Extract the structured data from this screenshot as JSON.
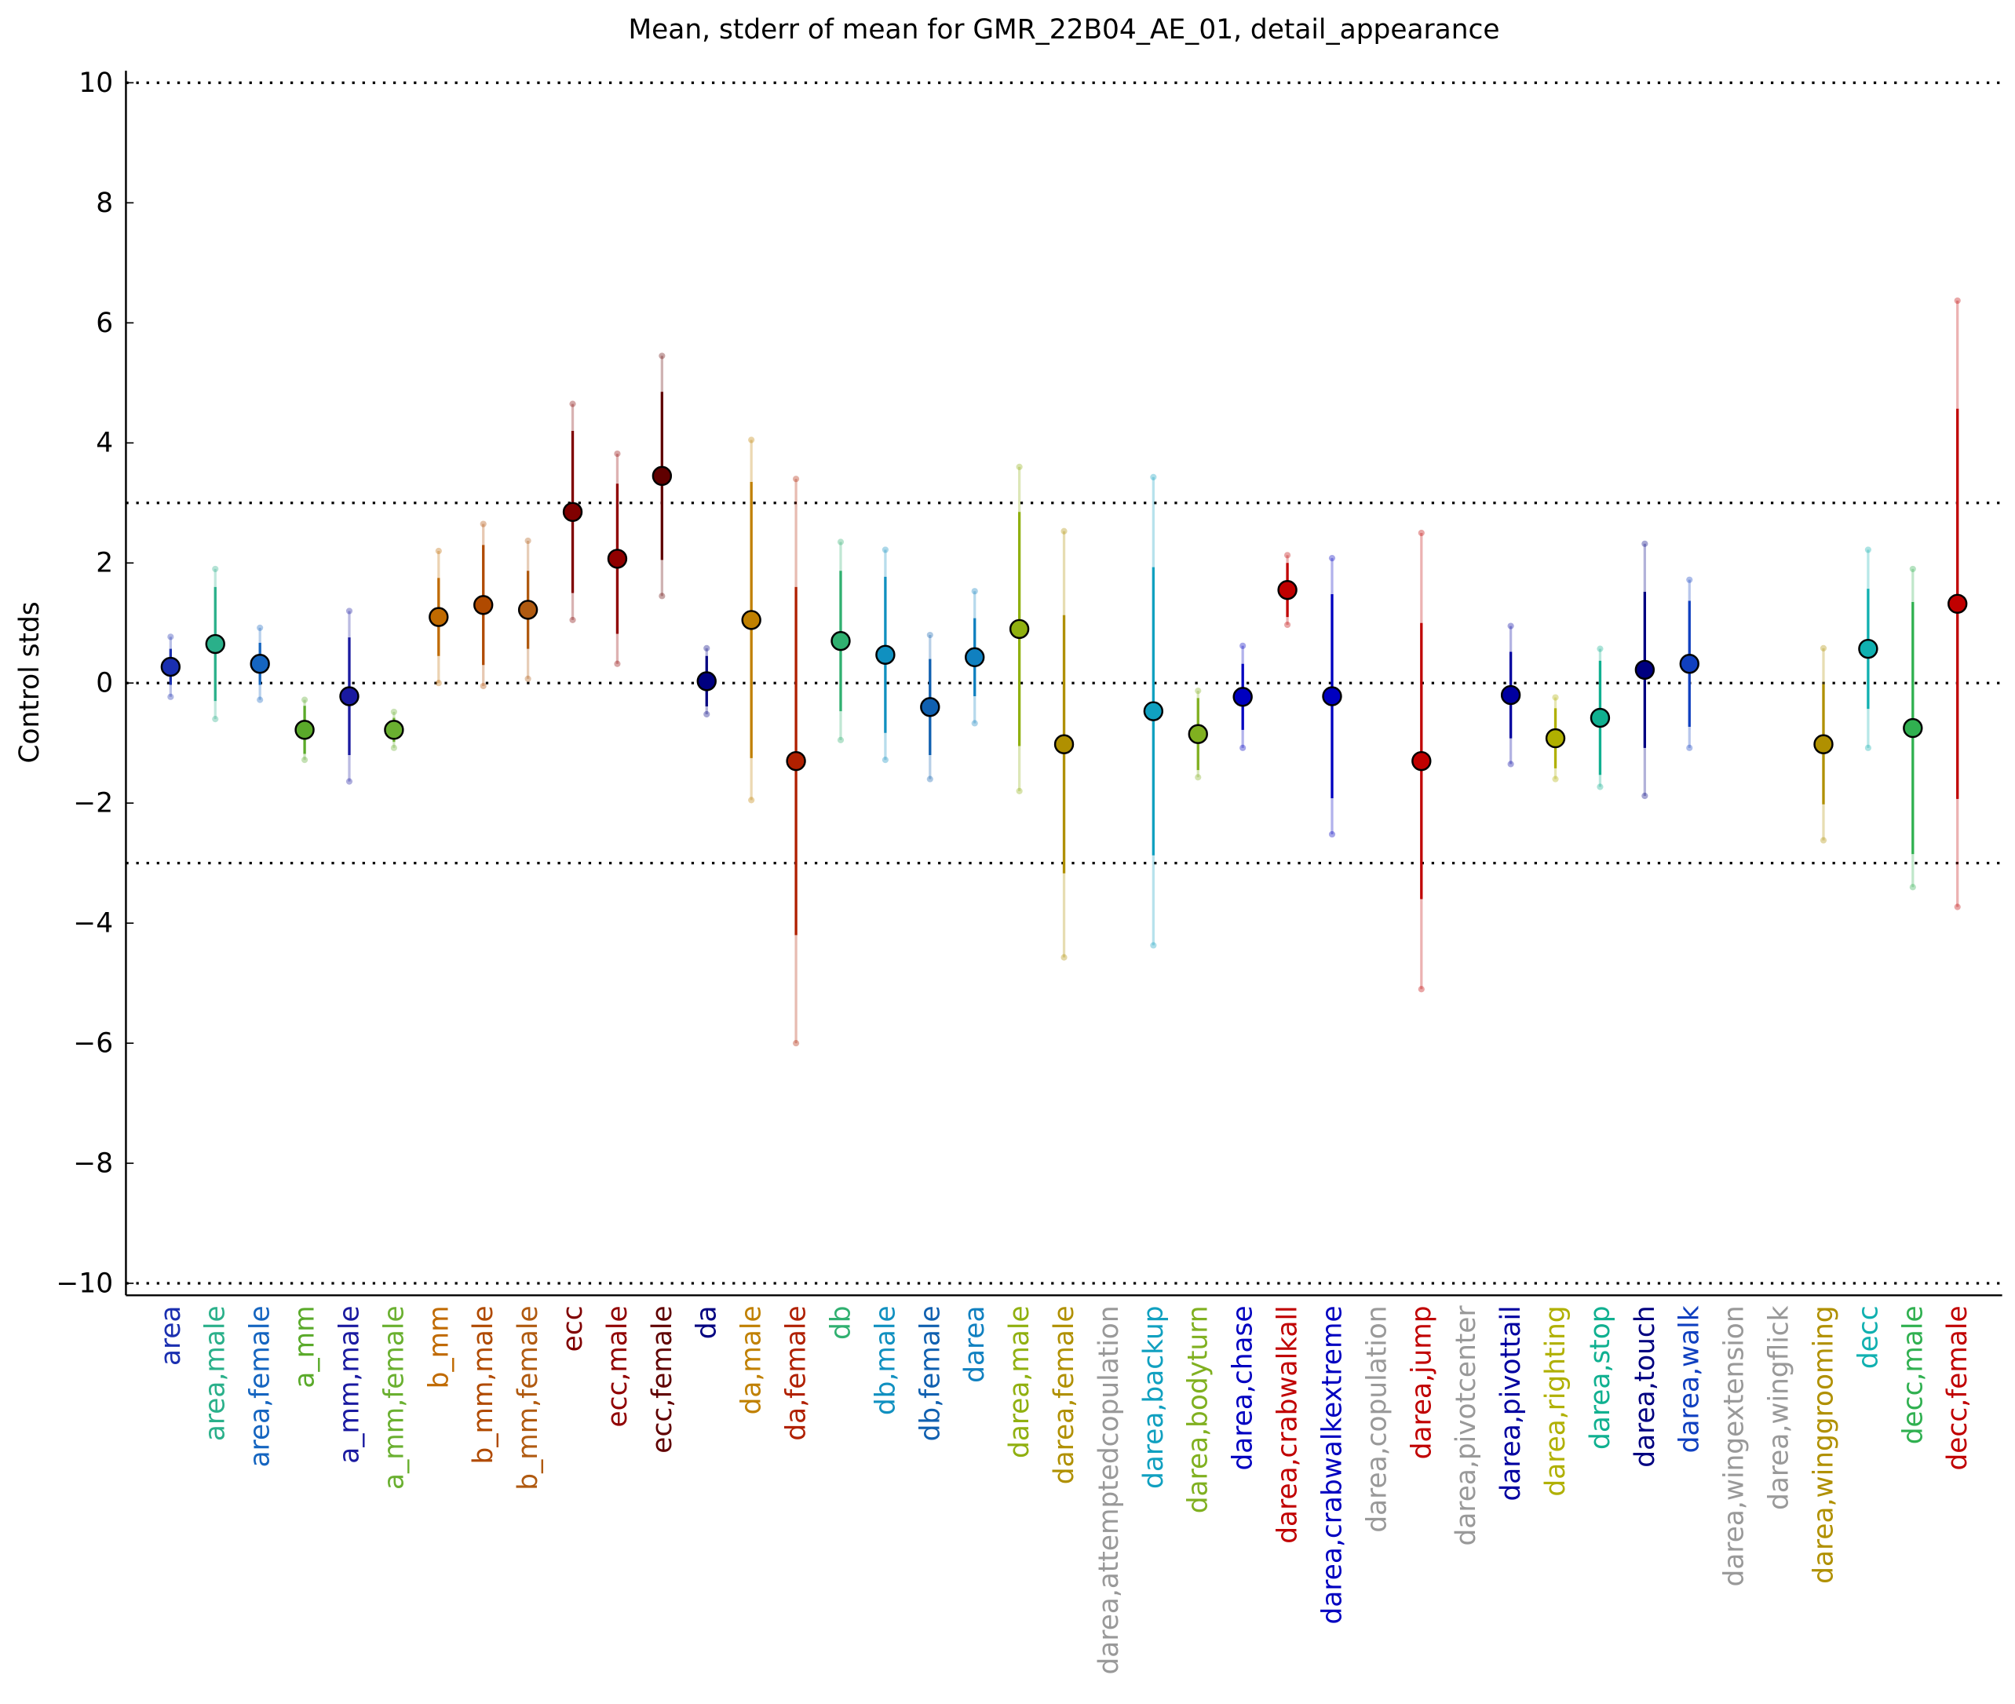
{
  "chart_data": {
    "type": "errorbar",
    "title": "Mean, stderr of mean for GMR_22B04_AE_01, detail_appearance",
    "y_label": "Control stds",
    "categories": [
      "area",
      "area,male",
      "area,female",
      "a_mm",
      "a_mm,male",
      "a_mm,female",
      "b_mm",
      "b_mm,male",
      "b_mm,female",
      "ecc",
      "ecc,male",
      "ecc,female",
      "da",
      "da,male",
      "da,female",
      "db",
      "db,male",
      "db,female",
      "darea",
      "darea,male",
      "darea,female",
      "darea,attemptedcopulation",
      "darea,backup",
      "darea,bodyturn",
      "darea,chase",
      "darea,crabwalkall",
      "darea,crabwalkextreme",
      "darea,copulation",
      "darea,jump",
      "darea,pivotcenter",
      "darea,pivottail",
      "darea,righting",
      "darea,stop",
      "darea,touch",
      "darea,walk",
      "darea,wingextension",
      "darea,wingflick",
      "darea,winggrooming",
      "decc",
      "decc,male",
      "decc,female"
    ],
    "values": [
      0.27,
      0.65,
      0.32,
      -0.78,
      -0.22,
      -0.78,
      1.1,
      1.3,
      1.22,
      2.85,
      2.07,
      3.45,
      0.03,
      1.05,
      -1.3,
      0.7,
      0.47,
      -0.4,
      0.43,
      0.9,
      -1.02,
      null,
      -0.47,
      -0.85,
      -0.23,
      1.55,
      -0.22,
      null,
      -1.3,
      null,
      -0.2,
      -0.92,
      -0.58,
      0.22,
      0.32,
      null,
      null,
      -1.02,
      0.57,
      -0.75,
      1.32
    ],
    "stderr": [
      0.3,
      0.95,
      0.35,
      0.4,
      0.98,
      0.2,
      0.65,
      1.0,
      0.65,
      1.35,
      1.25,
      1.4,
      0.42,
      2.3,
      2.9,
      1.17,
      1.3,
      0.8,
      0.65,
      1.95,
      2.15,
      null,
      2.4,
      0.6,
      0.55,
      0.45,
      1.7,
      null,
      2.3,
      null,
      0.72,
      0.5,
      0.95,
      1.3,
      1.05,
      null,
      null,
      1.0,
      1.0,
      2.1,
      3.25
    ],
    "std": [
      0.5,
      1.25,
      0.6,
      0.5,
      1.42,
      0.3,
      1.1,
      1.35,
      1.15,
      1.8,
      1.75,
      2.0,
      0.55,
      3.0,
      4.7,
      1.65,
      1.75,
      1.2,
      1.1,
      2.7,
      3.55,
      null,
      3.9,
      0.72,
      0.85,
      0.58,
      2.3,
      null,
      3.8,
      null,
      1.15,
      0.68,
      1.15,
      2.1,
      1.4,
      null,
      null,
      1.6,
      1.65,
      2.65,
      5.05
    ],
    "colors": [
      "#1a2fb0",
      "#2ab08a",
      "#1565c0",
      "#5aaa2a",
      "#1a1aa0",
      "#6ab030",
      "#c06a00",
      "#b04a00",
      "#b05a10",
      "#800000",
      "#900000",
      "#600000",
      "#000080",
      "#c08000",
      "#b02000",
      "#30b070",
      "#1090c0",
      "#1060b0",
      "#1080c0",
      "#90b010",
      "#b09000",
      "#999999",
      "#10a0c0",
      "#80b020",
      "#0000c0",
      "#c00000",
      "#0000c0",
      "#999999",
      "#c00000",
      "#999999",
      "#0000a0",
      "#b0b000",
      "#10b090",
      "#000080",
      "#1040c0",
      "#999999",
      "#999999",
      "#b09000",
      "#10b0b0",
      "#30b050",
      "#c00000"
    ],
    "xlim": [
      -1,
      41
    ],
    "ylim": [
      -10.2,
      10.2
    ],
    "yticks": [
      {
        "value": -10,
        "label": "−10"
      },
      {
        "value": -8,
        "label": "−8"
      },
      {
        "value": -6,
        "label": "−6"
      },
      {
        "value": -4,
        "label": "−4"
      },
      {
        "value": -2,
        "label": "−2"
      },
      0,
      2,
      4,
      6,
      8,
      10
    ],
    "reference_lines": [
      -10,
      -3,
      0,
      3,
      10
    ]
  }
}
